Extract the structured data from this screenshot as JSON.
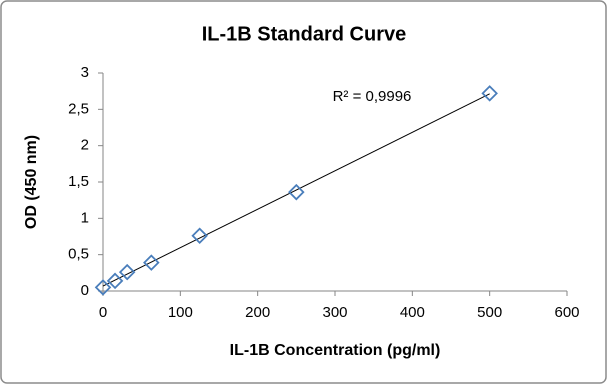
{
  "chart_data": {
    "type": "scatter",
    "title": "IL-1B Standard Curve",
    "x_label": "IL-1B Concentration (pg/ml)",
    "y_label": "OD (450 nm)",
    "annotation": "R² = 0,9996",
    "series": [
      {
        "color": "#4a7ebb",
        "x": [
          0,
          15.6,
          31.25,
          62.5,
          125,
          250,
          500
        ],
        "values": [
          0.05,
          0.14,
          0.26,
          0.39,
          0.76,
          1.36,
          2.72
        ]
      }
    ],
    "trendline": true,
    "xlim": [
      0,
      600
    ],
    "xticks": [
      0,
      100,
      200,
      300,
      400,
      500,
      600
    ],
    "ylim": [
      0,
      3
    ],
    "yticks": [
      0,
      {
        "value": 0.5,
        "label": "0,5"
      },
      1,
      {
        "value": 1.5,
        "label": "1,5"
      },
      2,
      {
        "value": 2.5,
        "label": "2,5"
      },
      3
    ]
  }
}
